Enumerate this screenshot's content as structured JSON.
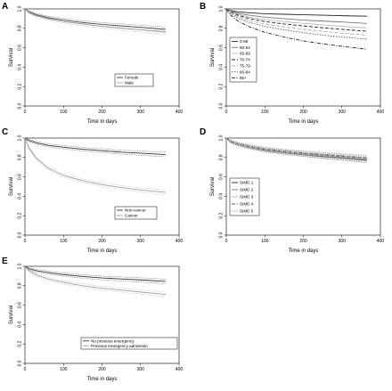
{
  "chart_data": [
    {
      "panel": "A",
      "type": "line",
      "xlabel": "Time in days",
      "ylabel": "Survival",
      "xlim": [
        0,
        400
      ],
      "ylim": [
        0,
        1.0
      ],
      "x_ticks": [
        "0",
        "100",
        "200",
        "300",
        "400"
      ],
      "y_ticks": [
        "0.0",
        "0.2",
        "0.4",
        "0.6",
        "0.8",
        "1.0"
      ],
      "confidence_bands": true,
      "legend_position": "bottom-right",
      "series": [
        {
          "name": "Female",
          "color": "#333333",
          "dash": "solid",
          "x": [
            0,
            10,
            30,
            60,
            100,
            150,
            200,
            250,
            300,
            365
          ],
          "y": [
            1.0,
            0.97,
            0.94,
            0.91,
            0.885,
            0.86,
            0.84,
            0.825,
            0.81,
            0.79
          ]
        },
        {
          "name": "Male",
          "color": "#a0a0a0",
          "dash": "solid",
          "x": [
            0,
            10,
            30,
            60,
            100,
            150,
            200,
            250,
            300,
            365
          ],
          "y": [
            1.0,
            0.965,
            0.93,
            0.9,
            0.87,
            0.845,
            0.82,
            0.8,
            0.785,
            0.76
          ]
        }
      ]
    },
    {
      "panel": "B",
      "type": "line",
      "xlabel": "Time in days",
      "ylabel": "Survival",
      "xlim": [
        0,
        400
      ],
      "ylim": [
        0,
        1.0
      ],
      "x_ticks": [
        "0",
        "100",
        "200",
        "300",
        "400"
      ],
      "y_ticks": [
        "0.0",
        "0.2",
        "0.4",
        "0.6",
        "0.8",
        "1.0"
      ],
      "confidence_bands": false,
      "legend_position": "bottom-left",
      "series": [
        {
          "name": "0-59",
          "color": "#222222",
          "dash": "solid",
          "x": [
            0,
            10,
            30,
            60,
            100,
            150,
            200,
            250,
            300,
            365
          ],
          "y": [
            1.0,
            0.985,
            0.97,
            0.96,
            0.95,
            0.945,
            0.94,
            0.935,
            0.93,
            0.925
          ]
        },
        {
          "name": "60-64",
          "color": "#777777",
          "dash": "solid",
          "x": [
            0,
            10,
            30,
            60,
            100,
            150,
            200,
            250,
            300,
            365
          ],
          "y": [
            1.0,
            0.98,
            0.955,
            0.935,
            0.915,
            0.9,
            0.885,
            0.875,
            0.865,
            0.85
          ]
        },
        {
          "name": "65-69",
          "color": "#bbbbbb",
          "dash": "solid",
          "x": [
            0,
            10,
            30,
            60,
            100,
            150,
            200,
            250,
            300,
            365
          ],
          "y": [
            1.0,
            0.975,
            0.945,
            0.915,
            0.89,
            0.87,
            0.85,
            0.835,
            0.82,
            0.805
          ]
        },
        {
          "name": "70-74",
          "color": "#222222",
          "dash": "4,2",
          "x": [
            0,
            10,
            30,
            60,
            100,
            150,
            200,
            250,
            300,
            365
          ],
          "y": [
            1.0,
            0.97,
            0.935,
            0.9,
            0.87,
            0.845,
            0.825,
            0.805,
            0.79,
            0.77
          ]
        },
        {
          "name": "75-79",
          "color": "#aaaaaa",
          "dash": "4,2",
          "x": [
            0,
            10,
            30,
            60,
            100,
            150,
            200,
            250,
            300,
            365
          ],
          "y": [
            1.0,
            0.965,
            0.92,
            0.88,
            0.845,
            0.815,
            0.79,
            0.77,
            0.75,
            0.73
          ]
        },
        {
          "name": "80-84",
          "color": "#555555",
          "dash": "1.5,1.5",
          "x": [
            0,
            10,
            30,
            60,
            100,
            150,
            200,
            250,
            300,
            365
          ],
          "y": [
            1.0,
            0.955,
            0.905,
            0.86,
            0.82,
            0.785,
            0.755,
            0.73,
            0.71,
            0.69
          ]
        },
        {
          "name": "85+",
          "color": "#222222",
          "dash": "4,1.5,1,1.5",
          "x": [
            0,
            10,
            30,
            60,
            100,
            150,
            200,
            250,
            300,
            365
          ],
          "y": [
            1.0,
            0.94,
            0.875,
            0.815,
            0.76,
            0.71,
            0.67,
            0.64,
            0.615,
            0.585
          ]
        }
      ]
    },
    {
      "panel": "C",
      "type": "line",
      "xlabel": "Time in days",
      "ylabel": "Survival",
      "xlim": [
        0,
        400
      ],
      "ylim": [
        0,
        1.0
      ],
      "x_ticks": [
        "0",
        "100",
        "200",
        "300",
        "400"
      ],
      "y_ticks": [
        "0.0",
        "0.2",
        "0.4",
        "0.6",
        "0.8",
        "1.0"
      ],
      "confidence_bands": true,
      "legend_position": "bottom-right",
      "series": [
        {
          "name": "Non-cancer",
          "color": "#333333",
          "dash": "solid",
          "x": [
            0,
            10,
            30,
            60,
            100,
            150,
            200,
            250,
            300,
            365
          ],
          "y": [
            1.0,
            0.975,
            0.95,
            0.925,
            0.905,
            0.885,
            0.87,
            0.855,
            0.845,
            0.83
          ]
        },
        {
          "name": "Cancer",
          "color": "#a0a0a0",
          "dash": "solid",
          "x": [
            0,
            10,
            30,
            60,
            100,
            150,
            200,
            250,
            300,
            365
          ],
          "y": [
            1.0,
            0.9,
            0.79,
            0.69,
            0.615,
            0.56,
            0.52,
            0.49,
            0.465,
            0.44
          ]
        }
      ]
    },
    {
      "panel": "D",
      "type": "line",
      "xlabel": "Time in days",
      "ylabel": "Survival",
      "xlim": [
        0,
        400
      ],
      "ylim": [
        0,
        1.0
      ],
      "x_ticks": [
        "0",
        "100",
        "200",
        "300",
        "400"
      ],
      "y_ticks": [
        "0.0",
        "0.2",
        "0.4",
        "0.6",
        "0.8",
        "1.0"
      ],
      "confidence_bands": true,
      "legend_position": "bottom-left",
      "series": [
        {
          "name": "SIMD 1",
          "color": "#222222",
          "dash": "solid",
          "x": [
            0,
            10,
            30,
            60,
            100,
            150,
            200,
            250,
            300,
            365
          ],
          "y": [
            1.0,
            0.965,
            0.935,
            0.905,
            0.875,
            0.85,
            0.83,
            0.81,
            0.795,
            0.77
          ]
        },
        {
          "name": "SIMD 2",
          "color": "#777777",
          "dash": "solid",
          "x": [
            0,
            10,
            30,
            60,
            100,
            150,
            200,
            250,
            300,
            365
          ],
          "y": [
            1.0,
            0.966,
            0.936,
            0.906,
            0.877,
            0.852,
            0.832,
            0.814,
            0.799,
            0.775
          ]
        },
        {
          "name": "SIMD 3",
          "color": "#bbbbbb",
          "dash": "solid",
          "x": [
            0,
            10,
            30,
            60,
            100,
            150,
            200,
            250,
            300,
            365
          ],
          "y": [
            1.0,
            0.967,
            0.938,
            0.909,
            0.881,
            0.857,
            0.838,
            0.82,
            0.806,
            0.785
          ]
        },
        {
          "name": "SIMD 4",
          "color": "#555555",
          "dash": "4,2",
          "x": [
            0,
            10,
            30,
            60,
            100,
            150,
            200,
            250,
            300,
            365
          ],
          "y": [
            1.0,
            0.968,
            0.94,
            0.912,
            0.885,
            0.862,
            0.843,
            0.826,
            0.812,
            0.792
          ]
        },
        {
          "name": "SIMD 5",
          "color": "#999999",
          "dash": "1.5,1.5",
          "x": [
            0,
            10,
            30,
            60,
            100,
            150,
            200,
            250,
            300,
            365
          ],
          "y": [
            1.0,
            0.969,
            0.942,
            0.915,
            0.889,
            0.867,
            0.849,
            0.833,
            0.82,
            0.8
          ]
        }
      ]
    },
    {
      "panel": "E",
      "type": "line",
      "xlabel": "Time in days",
      "ylabel": "Survival",
      "xlim": [
        0,
        400
      ],
      "ylim": [
        0,
        1.0
      ],
      "x_ticks": [
        "0",
        "100",
        "200",
        "300",
        "400"
      ],
      "y_ticks": [
        "0.0",
        "0.2",
        "0.4",
        "0.6",
        "0.8",
        "1.0"
      ],
      "confidence_bands": true,
      "legend_position": "bottom-right",
      "series": [
        {
          "name": "No previous emergency",
          "color": "#333333",
          "dash": "solid",
          "x": [
            0,
            10,
            30,
            60,
            100,
            150,
            200,
            250,
            300,
            365
          ],
          "y": [
            1.0,
            0.975,
            0.955,
            0.935,
            0.915,
            0.895,
            0.88,
            0.87,
            0.86,
            0.845
          ]
        },
        {
          "name": "Previous emergency admission",
          "color": "#a0a0a0",
          "dash": "solid",
          "x": [
            0,
            10,
            30,
            60,
            100,
            150,
            200,
            250,
            300,
            365
          ],
          "y": [
            1.0,
            0.955,
            0.91,
            0.87,
            0.835,
            0.8,
            0.775,
            0.755,
            0.735,
            0.71
          ]
        }
      ]
    }
  ]
}
